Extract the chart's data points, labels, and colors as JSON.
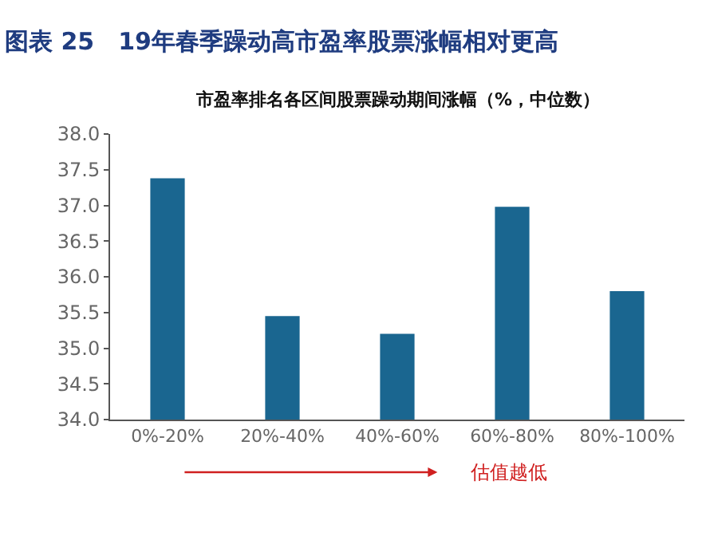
{
  "chart_data": {
    "type": "bar",
    "title": "图表 25　19年春季躁动高市盈率股票涨幅相对更高",
    "subtitle": "市盈率排名各区间股票躁动期间涨幅（%，中位数）",
    "categories": [
      "0%-20%",
      "20%-40%",
      "40%-60%",
      "60%-80%",
      "80%-100%"
    ],
    "values": [
      37.38,
      35.45,
      35.2,
      36.98,
      35.8
    ],
    "color": "#1a6690",
    "ylim": [
      34,
      38
    ],
    "yticks": [
      {
        "value": 34,
        "label": "34.0"
      },
      {
        "value": 34.5,
        "label": "34.5"
      },
      {
        "value": 35,
        "label": "35.0"
      },
      {
        "value": 35.5,
        "label": "35.5"
      },
      {
        "value": 36,
        "label": "36.0"
      },
      {
        "value": 36.5,
        "label": "36.5"
      },
      {
        "value": 37,
        "label": "37.0"
      },
      {
        "value": 37.5,
        "label": "37.5"
      },
      {
        "value": 38,
        "label": "38.0"
      }
    ],
    "annotations": [
      "估值越低"
    ]
  }
}
